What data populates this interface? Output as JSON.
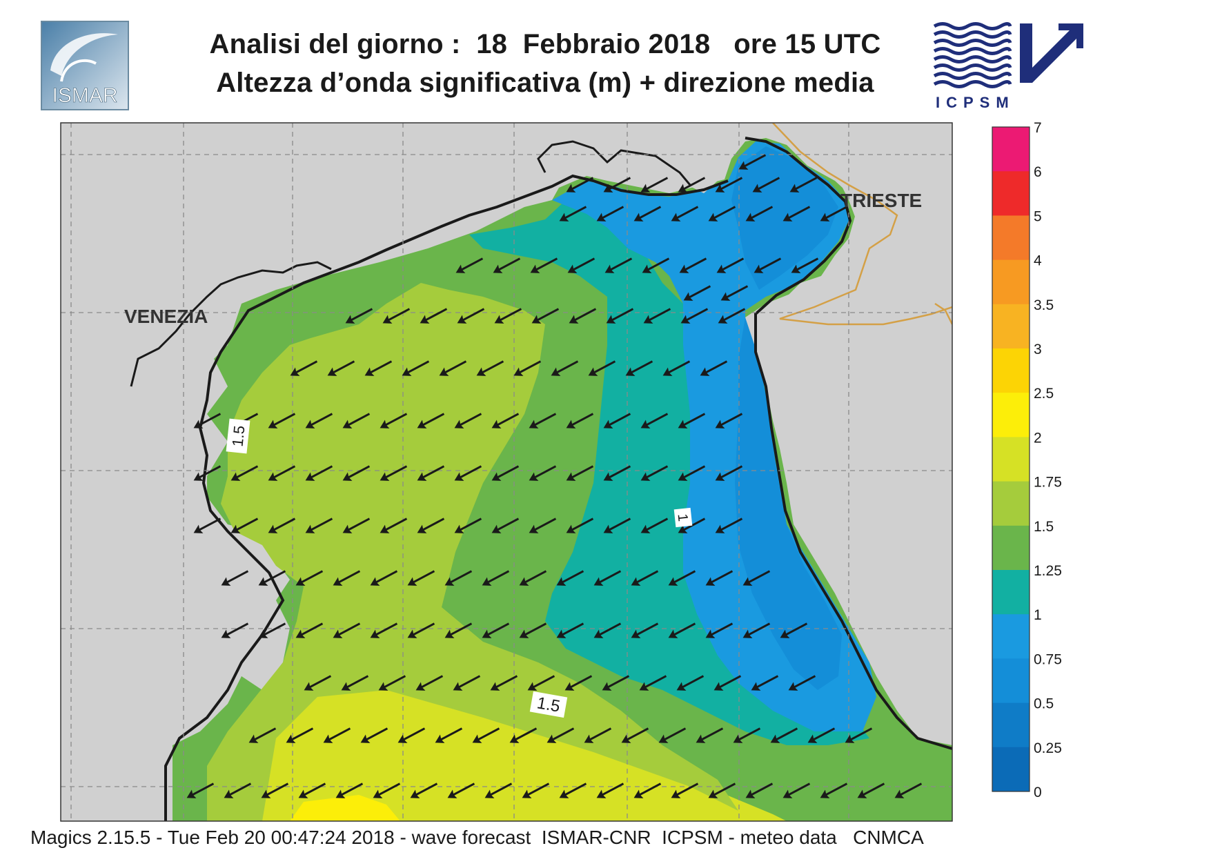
{
  "header": {
    "title_line1": "Analisi del giorno :  18  Febbraio 2018   ore 15 UTC",
    "title_line2": "Altezza d’onda significativa (m) + direzione media",
    "left_logo_text": "ISMAR",
    "right_logo_text": "ICPSM"
  },
  "map": {
    "place_labels": [
      "VENEZIA",
      "TRIESTE"
    ],
    "contour_labels": [
      "1.5",
      "1",
      "1.5"
    ],
    "wave_direction": "towards south-west",
    "colors": {
      "land": "#d0d0d0",
      "coast": "#1a1a1a",
      "border": "#d4a046",
      "arrow": "#1a1a1a"
    }
  },
  "colorbar": {
    "labels": [
      "7",
      "6",
      "5",
      "4",
      "3.5",
      "3",
      "2.5",
      "2",
      "1.75",
      "1.5",
      "1.25",
      "1",
      "0.75",
      "0.5",
      "0.25",
      "0"
    ],
    "colors": [
      "#ec1a73",
      "#ee2a2a",
      "#f47a29",
      "#f79a22",
      "#f8b322",
      "#fcd405",
      "#fcee09",
      "#d6e125",
      "#a5cc3c",
      "#6ab54b",
      "#12b0a2",
      "#1a9ae0",
      "#148ed8",
      "#0f7cc7",
      "#0b6bb7"
    ]
  },
  "footer": {
    "text": "Magics 2.15.5 - Tue Feb 20 00:47:24 2018 - wave forecast  ISMAR-CNR  ICPSM - meteo data   CNMCA"
  }
}
